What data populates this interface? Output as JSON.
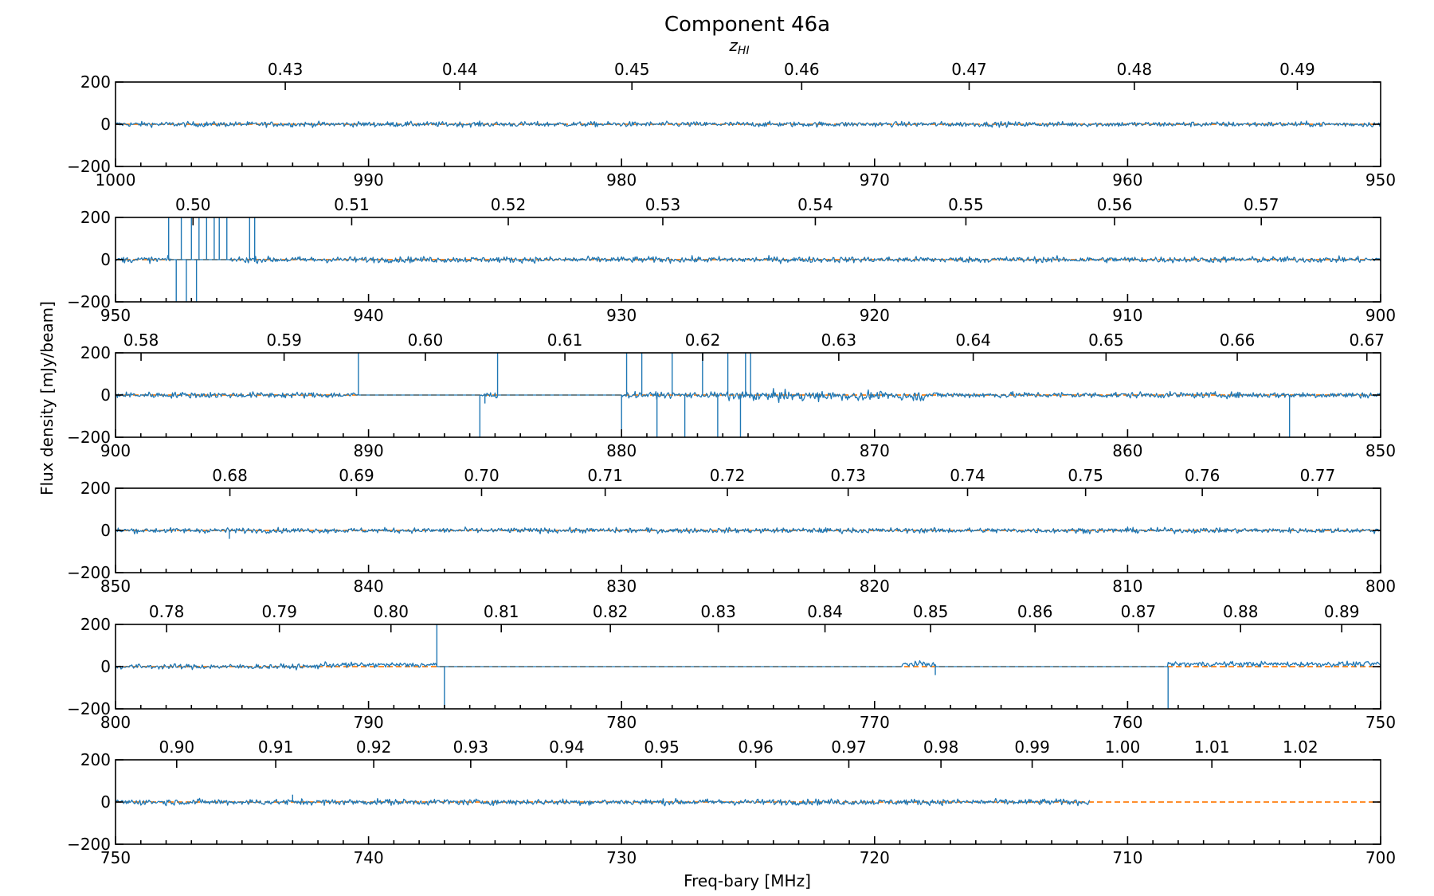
{
  "title": "Component 46a",
  "top_axis_label": "z",
  "top_axis_label_sub": "HI",
  "xlabel": "Freq-bary [MHz]",
  "ylabel": "Flux density [mJy/beam]",
  "colors": {
    "spectrum": "#1f77b4",
    "model": "#ff7f0e"
  },
  "chart_data": [
    {
      "type": "line",
      "xlim": [
        1000,
        950
      ],
      "ylim": [
        -200,
        200
      ],
      "x_ticks": [
        1000,
        990,
        980,
        970,
        960,
        950
      ],
      "y_ticks": [
        200,
        0,
        -200
      ],
      "z_ticks": [
        "0.43",
        "0.44",
        "0.45",
        "0.46",
        "0.47",
        "0.48",
        "0.49"
      ],
      "series": [],
      "data_end": 950,
      "noise": 6,
      "gaps": [],
      "spikes": []
    },
    {
      "type": "line",
      "xlim": [
        950,
        900
      ],
      "ylim": [
        -200,
        200
      ],
      "x_ticks": [
        950,
        940,
        930,
        920,
        910,
        900
      ],
      "y_ticks": [
        200,
        0,
        -200
      ],
      "z_ticks": [
        "0.50",
        "0.51",
        "0.52",
        "0.53",
        "0.54",
        "0.55",
        "0.56",
        "0.57"
      ],
      "series": [],
      "data_end": 900,
      "noise": 7,
      "gaps": [
        [
          947.8,
          945.5
        ]
      ],
      "spikes": [
        [
          947.9,
          220
        ],
        [
          947.6,
          -220
        ],
        [
          947.4,
          220
        ],
        [
          947.2,
          -200
        ],
        [
          947.0,
          220
        ],
        [
          946.8,
          -220
        ],
        [
          946.7,
          220
        ],
        [
          946.4,
          220
        ],
        [
          946.1,
          220
        ],
        [
          945.9,
          220
        ],
        [
          945.6,
          220
        ],
        [
          944.7,
          220
        ],
        [
          944.5,
          220
        ]
      ]
    },
    {
      "type": "line",
      "xlim": [
        900,
        850
      ],
      "ylim": [
        -200,
        200
      ],
      "x_ticks": [
        900,
        890,
        880,
        870,
        860,
        850
      ],
      "y_ticks": [
        200,
        0,
        -200
      ],
      "z_ticks": [
        "0.58",
        "0.59",
        "0.60",
        "0.61",
        "0.62",
        "0.63",
        "0.64",
        "0.65",
        "0.66",
        "0.67"
      ],
      "series": [],
      "data_end": 850,
      "noise": 7,
      "gaps": [
        [
          890.4,
          885.6
        ],
        [
          884.9,
          880.0
        ]
      ],
      "spikes": [
        [
          890.4,
          220
        ],
        [
          885.6,
          -220
        ],
        [
          885.4,
          -40
        ],
        [
          884.9,
          220
        ],
        [
          880.0,
          -220
        ],
        [
          879.8,
          220
        ],
        [
          879.2,
          220
        ],
        [
          878.6,
          -220
        ],
        [
          878.0,
          220
        ],
        [
          877.5,
          -220
        ],
        [
          876.8,
          220
        ],
        [
          876.2,
          -220
        ],
        [
          875.8,
          220
        ],
        [
          875.3,
          -220
        ],
        [
          875.1,
          220
        ],
        [
          874.9,
          220
        ],
        [
          853.6,
          -220
        ]
      ]
    },
    {
      "type": "line",
      "xlim": [
        850,
        800
      ],
      "ylim": [
        -200,
        200
      ],
      "x_ticks": [
        850,
        840,
        830,
        820,
        810,
        800
      ],
      "y_ticks": [
        200,
        0,
        -200
      ],
      "z_ticks": [
        "0.68",
        "0.69",
        "0.70",
        "0.71",
        "0.72",
        "0.73",
        "0.74",
        "0.75",
        "0.76",
        "0.77"
      ],
      "series": [],
      "data_end": 800,
      "noise": 6,
      "gaps": [],
      "spikes": [
        [
          845.5,
          -40
        ]
      ]
    },
    {
      "type": "line",
      "xlim": [
        800,
        750
      ],
      "ylim": [
        -200,
        200
      ],
      "x_ticks": [
        800,
        790,
        780,
        770,
        760,
        750
      ],
      "y_ticks": [
        200,
        0,
        -200
      ],
      "z_ticks": [
        "0.78",
        "0.79",
        "0.80",
        "0.81",
        "0.82",
        "0.83",
        "0.84",
        "0.85",
        "0.86",
        "0.87",
        "0.88",
        "0.89"
      ],
      "series": [],
      "data_end": 750,
      "noise": 6,
      "gaps": [
        [
          787.3,
          768.9
        ],
        [
          767.6,
          758.4
        ]
      ],
      "spikes": [
        [
          787.3,
          220
        ],
        [
          787.0,
          -220
        ],
        [
          767.6,
          -40
        ],
        [
          758.4,
          -200
        ]
      ]
    },
    {
      "type": "line",
      "xlim": [
        750,
        700
      ],
      "ylim": [
        -200,
        200
      ],
      "x_ticks": [
        750,
        740,
        730,
        720,
        710,
        700
      ],
      "y_ticks": [
        200,
        0,
        -200
      ],
      "z_ticks": [
        "0.90",
        "0.91",
        "0.92",
        "0.93",
        "0.94",
        "0.95",
        "0.96",
        "0.97",
        "0.98",
        "0.99",
        "1.00",
        "1.01",
        "1.02"
      ],
      "series": [],
      "data_end": 711.5,
      "noise": 7,
      "gaps": [],
      "spikes": [
        [
          743.0,
          35
        ]
      ]
    }
  ]
}
